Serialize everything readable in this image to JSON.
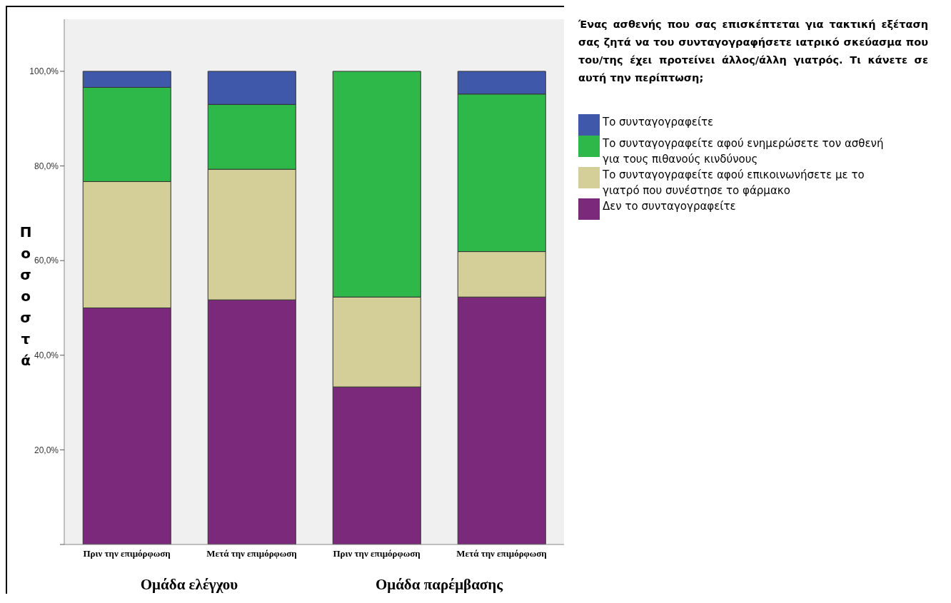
{
  "chart_data": [
    {
      "type": "bar",
      "stacked": true,
      "categories": [
        "Πριν την επιμόρφωση",
        "Μετά την επιμόρφωση"
      ],
      "xlabel": "Ομάδα ελέγχου",
      "ylabel": "Ποσοστά",
      "ylim": [
        0,
        111
      ],
      "yticks": [
        {
          "value": 0,
          "label": null
        },
        {
          "value": 20,
          "label": "20,0%"
        },
        {
          "value": 40,
          "label": "40,0%"
        },
        {
          "value": 60,
          "label": "60,0%"
        },
        {
          "value": 80,
          "label": "80,0%"
        },
        {
          "value": 100,
          "label": "100,0%"
        }
      ],
      "legend": "right",
      "legend_title": "Ένας ασθενής που σας επισκέπτεται για τακτική εξέταση σας ζητά να του συνταγογραφήσετε ιατρικό σκεύασμα που του/της έχει προτείνει άλλος/άλλη γιατρός. Τι κάνετε σε αυτή την περίπτωση;",
      "series": [
        {
          "name": "Δεν το συνταγογραφείτε",
          "color": "#7b2a7b",
          "values": [
            50.0,
            51.7
          ]
        },
        {
          "name": "Το συνταγογραφείτε αφού επικοινωνήσετε με το γιατρό που συνέστησε το φάρμακο",
          "color": "#d4cf98",
          "values": [
            26.7,
            27.6
          ]
        },
        {
          "name": "Το συνταγογραφείτε αφού ενημερώσετε τον ασθενή για τους πιθανούς κινδύνους",
          "color": "#2fb84a",
          "values": [
            19.9,
            13.7
          ]
        },
        {
          "name": "Το συνταγογραφείτε",
          "color": "#3f58a9",
          "values": [
            3.4,
            7.0
          ]
        }
      ]
    },
    {
      "type": "bar",
      "stacked": true,
      "categories": [
        "Πριν την επιμόρφωση",
        "Μετά την επιμόρφωση"
      ],
      "xlabel": "Ομάδα παρέμβασης",
      "ylim": [
        0,
        111
      ],
      "tick_labels": "x",
      "series": [
        {
          "color": "#7b2a7b",
          "values": [
            33.3,
            52.3
          ]
        },
        {
          "color": "#d4cf98",
          "values": [
            19.0,
            9.6
          ]
        },
        {
          "color": "#2fb84a",
          "values": [
            47.7,
            33.3
          ]
        },
        {
          "color": "#3f58a9",
          "values": [
            0,
            4.8
          ]
        }
      ]
    }
  ]
}
